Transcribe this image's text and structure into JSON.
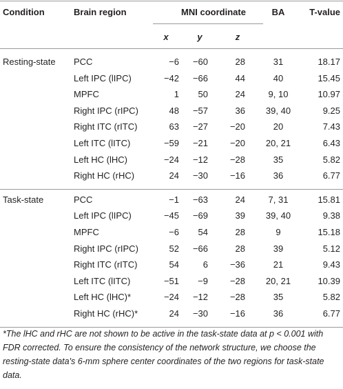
{
  "header": {
    "condition": "Condition",
    "brain_region": "Brain region",
    "mni": "MNI coordinate",
    "ba": "BA",
    "t_value": "T-value"
  },
  "subheader": [
    "x",
    "y",
    "z"
  ],
  "groups": [
    {
      "condition": "Resting-state",
      "rows": [
        [
          "PCC",
          "−6",
          "−60",
          "28",
          "31",
          "18.17"
        ],
        [
          "Left IPC (lIPC)",
          "−42",
          "−66",
          "44",
          "40",
          "15.45"
        ],
        [
          "MPFC",
          "1",
          "50",
          "24",
          "9, 10",
          "10.97"
        ],
        [
          "Right IPC (rIPC)",
          "48",
          "−57",
          "36",
          "39, 40",
          "9.25"
        ],
        [
          "Right ITC (rITC)",
          "63",
          "−27",
          "−20",
          "20",
          "7.43"
        ],
        [
          "Left ITC (lITC)",
          "−59",
          "−21",
          "−20",
          "20, 21",
          "6.43"
        ],
        [
          "Left HC (lHC)",
          "−24",
          "−12",
          "−28",
          "35",
          "5.82"
        ],
        [
          "Right HC (rHC)",
          "24",
          "−30",
          "−16",
          "36",
          "6.77"
        ]
      ]
    },
    {
      "condition": "Task-state",
      "rows": [
        [
          "PCC",
          "−1",
          "−63",
          "24",
          "7, 31",
          "15.81"
        ],
        [
          "Left IPC (lIPC)",
          "−45",
          "−69",
          "39",
          "39, 40",
          "9.38"
        ],
        [
          "MPFC",
          "−6",
          "54",
          "28",
          "9",
          "15.18"
        ],
        [
          "Right IPC (rIPC)",
          "52",
          "−66",
          "28",
          "39",
          "5.12"
        ],
        [
          "Right ITC (rITC)",
          "54",
          "6",
          "−36",
          "21",
          "9.43"
        ],
        [
          "Left ITC (lITC)",
          "−51",
          "−9",
          "−28",
          "20, 21",
          "10.39"
        ],
        [
          "Left HC (lHC)*",
          "−24",
          "−12",
          "−28",
          "35",
          "5.82"
        ],
        [
          "Right HC (rHC)*",
          "24",
          "−30",
          "−16",
          "36",
          "6.77"
        ]
      ]
    }
  ],
  "footnote": "*The lHC and rHC are not shown to be active in the task-state data at p < 0.001 with FDR corrected. To ensure the consistency of the network structure, we choose the resting-state data's 6-mm sphere center coordinates of the two regions for task-state data."
}
